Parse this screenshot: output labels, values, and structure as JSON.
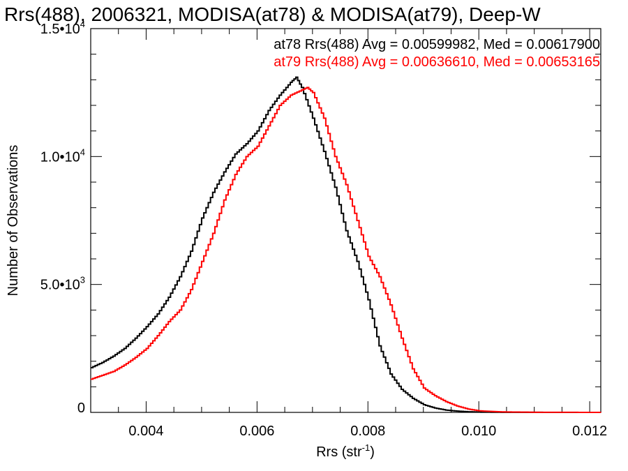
{
  "chart_data": {
    "type": "line",
    "title": "Rrs(488), 2006321, MODISA(at78) & MODISA(at79), Deep-W",
    "xlabel": "Rrs (str",
    "xlabel_sup": "-1",
    "xlabel_end": ")",
    "ylabel": "Number of Observations",
    "xlim": [
      0.003,
      0.0122
    ],
    "ylim": [
      0,
      15000
    ],
    "x_ticks": [
      {
        "value": 0.004,
        "label": "0.004"
      },
      {
        "value": 0.006,
        "label": "0.006"
      },
      {
        "value": 0.008,
        "label": "0.008"
      },
      {
        "value": 0.01,
        "label": "0.010"
      },
      {
        "value": 0.012,
        "label": "0.012"
      }
    ],
    "y_ticks": [
      {
        "value": 0,
        "label": "0",
        "sup": ""
      },
      {
        "value": 5000,
        "label": "5.0•10",
        "sup": "3"
      },
      {
        "value": 10000,
        "label": "1.0•10",
        "sup": "4"
      },
      {
        "value": 15000,
        "label": "1.5•10",
        "sup": "4"
      }
    ],
    "legend": [
      {
        "text": "at78 Rrs(488) Avg = 0.00599982, Med = 0.00617900",
        "color": "#000000"
      },
      {
        "text": "at79 Rrs(488) Avg = 0.00636610, Med = 0.00653165",
        "color": "#ff0000"
      }
    ],
    "series": [
      {
        "color": "#000000",
        "x": [
          0.003,
          0.0032,
          0.0034,
          0.0036,
          0.0038,
          0.004,
          0.0042,
          0.0044,
          0.0046,
          0.0048,
          0.005,
          0.0052,
          0.0054,
          0.0056,
          0.0058,
          0.006,
          0.0062,
          0.0064,
          0.0066,
          0.0067,
          0.0068,
          0.007,
          0.0072,
          0.0074,
          0.0076,
          0.0078,
          0.008,
          0.0082,
          0.0084,
          0.0086,
          0.0088,
          0.009,
          0.0092,
          0.0094,
          0.0096,
          0.0098,
          0.01,
          0.0104,
          0.011,
          0.0122
        ],
        "y": [
          1750,
          1950,
          2200,
          2500,
          2900,
          3350,
          3850,
          4500,
          5300,
          6300,
          7600,
          8600,
          9400,
          10100,
          10500,
          11000,
          11800,
          12400,
          12900,
          13100,
          12700,
          11500,
          10200,
          8800,
          7100,
          5900,
          4400,
          2600,
          1500,
          900,
          550,
          300,
          170,
          90,
          50,
          25,
          12,
          5,
          2,
          0
        ]
      },
      {
        "color": "#ff0000",
        "x": [
          0.003,
          0.0032,
          0.0034,
          0.0036,
          0.0038,
          0.004,
          0.0042,
          0.0044,
          0.0046,
          0.0048,
          0.005,
          0.0052,
          0.0054,
          0.0056,
          0.0058,
          0.006,
          0.0062,
          0.0064,
          0.0066,
          0.0068,
          0.0069,
          0.007,
          0.0072,
          0.0074,
          0.0076,
          0.0078,
          0.008,
          0.0082,
          0.0084,
          0.0086,
          0.0088,
          0.009,
          0.0092,
          0.0094,
          0.0096,
          0.0098,
          0.01,
          0.0104,
          0.011,
          0.0122
        ],
        "y": [
          1300,
          1450,
          1600,
          1850,
          2150,
          2500,
          3000,
          3550,
          4000,
          4800,
          5900,
          7000,
          8300,
          9300,
          10000,
          10400,
          11200,
          12000,
          12400,
          12600,
          12700,
          12500,
          11500,
          10000,
          8900,
          7500,
          6100,
          5300,
          4200,
          2900,
          1700,
          950,
          650,
          420,
          250,
          130,
          60,
          20,
          5,
          0
        ]
      }
    ]
  }
}
